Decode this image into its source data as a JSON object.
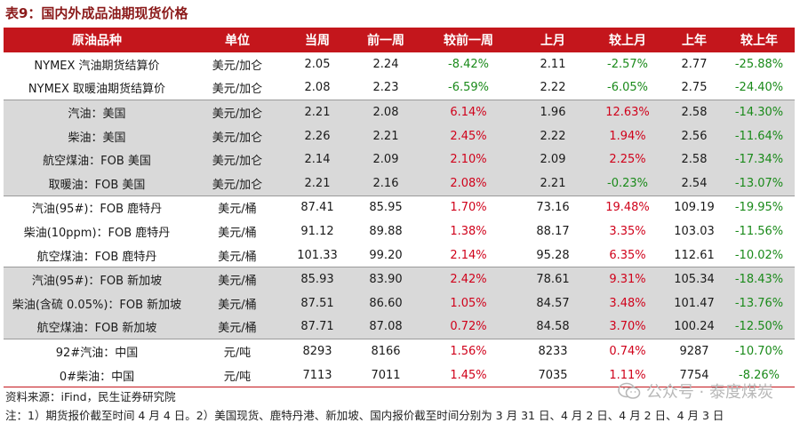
{
  "title": "表9：国内外成品油期现货价格",
  "headers": [
    "原油品种",
    "单位",
    "当周",
    "前一周",
    "较前一周",
    "上月",
    "较上月",
    "上年",
    "较上年"
  ],
  "rows": [
    {
      "name": "NYMEX 汽油期货结算价",
      "unit": "美元/加仑",
      "cur": "2.05",
      "prev": "2.24",
      "wow": "-8.42%",
      "mon": "2.11",
      "mom": "-2.57%",
      "yr": "2.77",
      "yoy": "-25.88%",
      "grey": false,
      "sep": false
    },
    {
      "name": "NYMEX 取暖油期货结算价",
      "unit": "美元/加仑",
      "cur": "2.08",
      "prev": "2.23",
      "wow": "-6.59%",
      "mon": "2.22",
      "mom": "-6.05%",
      "yr": "2.75",
      "yoy": "-24.40%",
      "grey": false,
      "sep": false
    },
    {
      "name": "汽油：美国",
      "unit": "美元/加仑",
      "cur": "2.21",
      "prev": "2.08",
      "wow": "6.14%",
      "mon": "1.96",
      "mom": "12.63%",
      "yr": "2.58",
      "yoy": "-14.30%",
      "grey": true,
      "sep": true
    },
    {
      "name": "柴油：美国",
      "unit": "美元/加仑",
      "cur": "2.26",
      "prev": "2.21",
      "wow": "2.45%",
      "mon": "2.22",
      "mom": "1.94%",
      "yr": "2.56",
      "yoy": "-11.64%",
      "grey": true,
      "sep": false
    },
    {
      "name": "航空煤油：FOB 美国",
      "unit": "美元/加仑",
      "cur": "2.14",
      "prev": "2.09",
      "wow": "2.10%",
      "mon": "2.09",
      "mom": "2.25%",
      "yr": "2.58",
      "yoy": "-17.34%",
      "grey": true,
      "sep": false
    },
    {
      "name": "取暖油：FOB 美国",
      "unit": "美元/加仑",
      "cur": "2.21",
      "prev": "2.16",
      "wow": "2.08%",
      "mon": "2.21",
      "mom": "-0.23%",
      "yr": "2.54",
      "yoy": "-13.07%",
      "grey": true,
      "sep": false
    },
    {
      "name": "汽油(95#)：FOB 鹿特丹",
      "unit": "美元/桶",
      "cur": "87.41",
      "prev": "85.95",
      "wow": "1.70%",
      "mon": "73.16",
      "mom": "19.48%",
      "yr": "109.19",
      "yoy": "-19.95%",
      "grey": false,
      "sep": true
    },
    {
      "name": "柴油(10ppm)：FOB 鹿特丹",
      "unit": "美元/桶",
      "cur": "91.12",
      "prev": "89.88",
      "wow": "1.38%",
      "mon": "88.17",
      "mom": "3.35%",
      "yr": "103.03",
      "yoy": "-11.56%",
      "grey": false,
      "sep": false
    },
    {
      "name": "航空煤油：FOB 鹿特丹",
      "unit": "美元/桶",
      "cur": "101.33",
      "prev": "99.20",
      "wow": "2.14%",
      "mon": "95.28",
      "mom": "6.35%",
      "yr": "112.61",
      "yoy": "-10.02%",
      "grey": false,
      "sep": false
    },
    {
      "name": "汽油(95#)：FOB 新加坡",
      "unit": "美元/桶",
      "cur": "85.93",
      "prev": "83.90",
      "wow": "2.42%",
      "mon": "78.61",
      "mom": "9.31%",
      "yr": "105.34",
      "yoy": "-18.43%",
      "grey": true,
      "sep": true
    },
    {
      "name": "柴油(含硫 0.05%)：FOB 新加坡",
      "unit": "美元/桶",
      "cur": "87.51",
      "prev": "86.60",
      "wow": "1.05%",
      "mon": "84.57",
      "mom": "3.48%",
      "yr": "101.47",
      "yoy": "-13.76%",
      "grey": true,
      "sep": false
    },
    {
      "name": "航空煤油：FOB 新加坡",
      "unit": "美元/桶",
      "cur": "87.71",
      "prev": "87.08",
      "wow": "0.72%",
      "mon": "84.58",
      "mom": "3.70%",
      "yr": "100.24",
      "yoy": "-12.50%",
      "grey": true,
      "sep": false
    },
    {
      "name": "92#汽油：中国",
      "unit": "元/吨",
      "cur": "8293",
      "prev": "8166",
      "wow": "1.56%",
      "mon": "8233",
      "mom": "0.74%",
      "yr": "9287",
      "yoy": "-10.70%",
      "grey": false,
      "sep": true
    },
    {
      "name": "0#柴油：中国",
      "unit": "元/吨",
      "cur": "7113",
      "prev": "7011",
      "wow": "1.45%",
      "mon": "7035",
      "mom": "1.11%",
      "yr": "7754",
      "yoy": "-8.26%",
      "grey": false,
      "sep": false
    }
  ],
  "source": "资料来源：iFind，民生证券研究院",
  "note": "注：1）期货报价截至时间 4 月 4 日。2）美国现货、鹿特丹港、新加坡、国内报价截至时间分别为 3 月 31 日、4 月 2 日、4 月 2 日、4 月 3 日",
  "watermark": "公众号 · 泰度煤炭",
  "colors": {
    "header_bg": "#c4161c",
    "positive": "#d0021b",
    "negative": "#1a8a1a",
    "group_bg": "#d9d9d9"
  }
}
